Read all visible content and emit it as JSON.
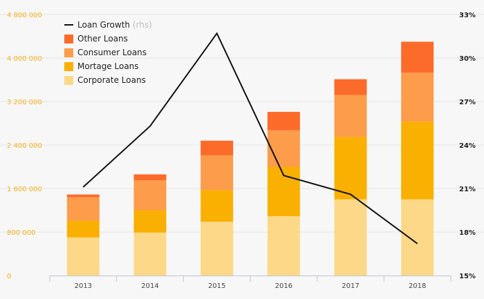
{
  "chart_data": {
    "type": "bar",
    "stacked": true,
    "categories": [
      "2013",
      "2014",
      "2015",
      "2016",
      "2017",
      "2018"
    ],
    "series": [
      {
        "name": "Corporate Loans",
        "color": "#fdd888",
        "values": [
          700000,
          790000,
          990000,
          1090000,
          1400000,
          1400000
        ]
      },
      {
        "name": "Mortage Loans",
        "color": "#f9b000",
        "values": [
          310000,
          410000,
          580000,
          910000,
          1150000,
          1430000
        ]
      },
      {
        "name": "Consumer Loans",
        "color": "#fd9c4b",
        "values": [
          430000,
          550000,
          640000,
          670000,
          770000,
          900000
        ]
      },
      {
        "name": "Other Loans",
        "color": "#fd6b2a",
        "values": [
          50000,
          110000,
          270000,
          340000,
          290000,
          570000
        ]
      }
    ],
    "line": {
      "name": "Loan Growth",
      "note": "(rhs)",
      "color": "#111111",
      "values": [
        21.1,
        25.3,
        31.7,
        21.9,
        20.6,
        17.2
      ]
    },
    "y_left": {
      "min": 0,
      "max": 4800000,
      "ticks": [
        0,
        800000,
        1600000,
        2400000,
        3200000,
        4000000,
        4800000
      ],
      "tick_labels": [
        "0",
        "800 000",
        "1 600 000",
        "2 400 000",
        "3 200 000",
        "4 000 000",
        "4 800 000"
      ]
    },
    "y_right": {
      "min": 15,
      "max": 33,
      "ticks": [
        15,
        18,
        21,
        24,
        27,
        30,
        33
      ],
      "tick_labels": [
        "15%",
        "18%",
        "21%",
        "24%",
        "27%",
        "30%",
        "33%"
      ]
    },
    "grid": true,
    "legend_position": "top-left"
  }
}
